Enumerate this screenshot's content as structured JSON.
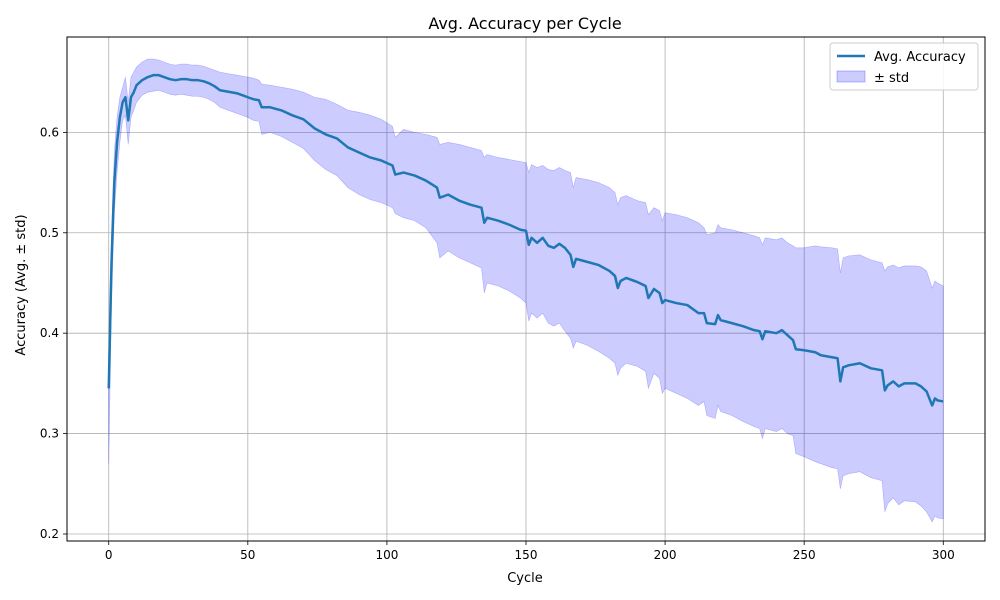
{
  "chart_data": {
    "type": "line",
    "title": "Avg. Accuracy per Cycle",
    "xlabel": "Cycle",
    "ylabel": "Accuracy (Avg. ± std)",
    "xlim": [
      -15,
      315
    ],
    "ylim": [
      0.193,
      0.695
    ],
    "xticks": [
      0,
      50,
      100,
      150,
      200,
      250,
      300
    ],
    "yticks": [
      0.2,
      0.3,
      0.4,
      0.5,
      0.6
    ],
    "grid": true,
    "legend_position": "top-right",
    "series": [
      {
        "name": "Avg. Accuracy",
        "color": "#1f77b4",
        "x": [
          0,
          1,
          2,
          3,
          4,
          5,
          6,
          7,
          8,
          9,
          10,
          12,
          14,
          16,
          18,
          20,
          22,
          24,
          26,
          28,
          30,
          32,
          34,
          36,
          38,
          40,
          42,
          44,
          46,
          48,
          50,
          52,
          54,
          55,
          58,
          62,
          66,
          70,
          74,
          78,
          82,
          86,
          90,
          94,
          98,
          102,
          103,
          106,
          110,
          114,
          118,
          119,
          122,
          126,
          130,
          134,
          135,
          136,
          140,
          144,
          148,
          150,
          151,
          152,
          154,
          156,
          158,
          160,
          162,
          164,
          166,
          167,
          168,
          172,
          176,
          180,
          182,
          183,
          184,
          186,
          190,
          193,
          194,
          196,
          198,
          199,
          200,
          204,
          208,
          212,
          214,
          215,
          218,
          219,
          220,
          224,
          228,
          232,
          234,
          235,
          236,
          240,
          242,
          244,
          246,
          247,
          250,
          254,
          256,
          260,
          262,
          263,
          264,
          266,
          270,
          274,
          278,
          279,
          280,
          282,
          284,
          286,
          290,
          292,
          294,
          296,
          297,
          298,
          300
        ],
        "y": [
          0.345,
          0.47,
          0.55,
          0.59,
          0.615,
          0.63,
          0.635,
          0.612,
          0.635,
          0.64,
          0.647,
          0.652,
          0.655,
          0.657,
          0.657,
          0.655,
          0.653,
          0.652,
          0.653,
          0.653,
          0.652,
          0.652,
          0.651,
          0.649,
          0.646,
          0.642,
          0.641,
          0.64,
          0.639,
          0.637,
          0.635,
          0.633,
          0.632,
          0.625,
          0.625,
          0.622,
          0.617,
          0.613,
          0.604,
          0.598,
          0.594,
          0.585,
          0.58,
          0.575,
          0.572,
          0.567,
          0.558,
          0.56,
          0.557,
          0.552,
          0.545,
          0.535,
          0.538,
          0.532,
          0.528,
          0.525,
          0.51,
          0.515,
          0.512,
          0.508,
          0.503,
          0.502,
          0.488,
          0.495,
          0.49,
          0.495,
          0.487,
          0.485,
          0.489,
          0.485,
          0.478,
          0.466,
          0.474,
          0.471,
          0.468,
          0.462,
          0.457,
          0.445,
          0.452,
          0.455,
          0.451,
          0.447,
          0.435,
          0.444,
          0.44,
          0.43,
          0.433,
          0.43,
          0.428,
          0.42,
          0.42,
          0.41,
          0.409,
          0.418,
          0.413,
          0.41,
          0.407,
          0.403,
          0.402,
          0.394,
          0.402,
          0.4,
          0.403,
          0.398,
          0.393,
          0.384,
          0.383,
          0.381,
          0.378,
          0.376,
          0.375,
          0.352,
          0.366,
          0.368,
          0.37,
          0.365,
          0.363,
          0.343,
          0.348,
          0.352,
          0.347,
          0.35,
          0.35,
          0.347,
          0.342,
          0.328,
          0.335,
          0.333,
          0.332
        ]
      },
      {
        "name": "± std",
        "type": "band",
        "color": "#0000ff",
        "opacity": 0.2,
        "x": [
          0,
          1,
          2,
          3,
          4,
          5,
          6,
          7,
          8,
          9,
          10,
          12,
          14,
          16,
          18,
          20,
          22,
          24,
          26,
          28,
          30,
          32,
          34,
          36,
          38,
          40,
          42,
          44,
          46,
          48,
          50,
          52,
          54,
          55,
          58,
          62,
          66,
          70,
          74,
          78,
          82,
          86,
          90,
          94,
          98,
          102,
          103,
          106,
          110,
          114,
          118,
          119,
          122,
          126,
          130,
          134,
          135,
          136,
          140,
          144,
          148,
          150,
          151,
          152,
          154,
          156,
          158,
          160,
          162,
          164,
          166,
          167,
          168,
          172,
          176,
          180,
          182,
          183,
          184,
          186,
          190,
          193,
          194,
          196,
          198,
          199,
          200,
          204,
          208,
          212,
          214,
          215,
          218,
          219,
          220,
          224,
          228,
          232,
          234,
          235,
          236,
          240,
          242,
          244,
          246,
          247,
          250,
          254,
          256,
          260,
          262,
          263,
          264,
          266,
          270,
          274,
          278,
          279,
          280,
          282,
          284,
          286,
          290,
          292,
          294,
          296,
          297,
          298,
          300
        ],
        "upper": [
          0.38,
          0.5,
          0.58,
          0.615,
          0.635,
          0.645,
          0.655,
          0.63,
          0.655,
          0.66,
          0.665,
          0.67,
          0.673,
          0.673,
          0.672,
          0.67,
          0.668,
          0.667,
          0.668,
          0.668,
          0.667,
          0.667,
          0.666,
          0.664,
          0.662,
          0.66,
          0.659,
          0.658,
          0.657,
          0.656,
          0.655,
          0.654,
          0.652,
          0.648,
          0.647,
          0.645,
          0.643,
          0.64,
          0.635,
          0.633,
          0.628,
          0.622,
          0.62,
          0.617,
          0.613,
          0.606,
          0.595,
          0.603,
          0.6,
          0.598,
          0.595,
          0.588,
          0.59,
          0.588,
          0.585,
          0.582,
          0.575,
          0.578,
          0.575,
          0.573,
          0.571,
          0.57,
          0.56,
          0.568,
          0.565,
          0.567,
          0.563,
          0.562,
          0.565,
          0.562,
          0.56,
          0.545,
          0.555,
          0.553,
          0.55,
          0.545,
          0.54,
          0.528,
          0.535,
          0.537,
          0.532,
          0.53,
          0.518,
          0.525,
          0.522,
          0.512,
          0.52,
          0.518,
          0.515,
          0.51,
          0.505,
          0.498,
          0.5,
          0.508,
          0.505,
          0.503,
          0.5,
          0.497,
          0.495,
          0.488,
          0.495,
          0.493,
          0.495,
          0.49,
          0.487,
          0.485,
          0.485,
          0.487,
          0.486,
          0.485,
          0.484,
          0.46,
          0.475,
          0.477,
          0.478,
          0.473,
          0.47,
          0.462,
          0.466,
          0.468,
          0.465,
          0.467,
          0.467,
          0.466,
          0.462,
          0.445,
          0.452,
          0.45,
          0.447
        ],
        "lower": [
          0.27,
          0.43,
          0.52,
          0.56,
          0.59,
          0.612,
          0.617,
          0.588,
          0.615,
          0.622,
          0.63,
          0.637,
          0.64,
          0.641,
          0.642,
          0.64,
          0.638,
          0.637,
          0.638,
          0.637,
          0.636,
          0.636,
          0.635,
          0.633,
          0.63,
          0.625,
          0.623,
          0.621,
          0.619,
          0.617,
          0.615,
          0.612,
          0.611,
          0.598,
          0.6,
          0.596,
          0.59,
          0.584,
          0.572,
          0.563,
          0.557,
          0.545,
          0.538,
          0.533,
          0.53,
          0.525,
          0.519,
          0.515,
          0.512,
          0.505,
          0.49,
          0.475,
          0.482,
          0.475,
          0.47,
          0.465,
          0.44,
          0.45,
          0.447,
          0.442,
          0.435,
          0.43,
          0.412,
          0.42,
          0.415,
          0.42,
          0.41,
          0.407,
          0.41,
          0.402,
          0.395,
          0.385,
          0.392,
          0.388,
          0.382,
          0.375,
          0.37,
          0.358,
          0.365,
          0.37,
          0.367,
          0.362,
          0.345,
          0.36,
          0.355,
          0.34,
          0.345,
          0.34,
          0.335,
          0.328,
          0.332,
          0.318,
          0.315,
          0.328,
          0.322,
          0.318,
          0.312,
          0.307,
          0.305,
          0.295,
          0.305,
          0.302,
          0.305,
          0.3,
          0.298,
          0.28,
          0.277,
          0.272,
          0.27,
          0.266,
          0.265,
          0.245,
          0.258,
          0.26,
          0.262,
          0.256,
          0.253,
          0.222,
          0.23,
          0.236,
          0.229,
          0.233,
          0.232,
          0.228,
          0.222,
          0.212,
          0.218,
          0.216,
          0.215
        ]
      }
    ]
  }
}
